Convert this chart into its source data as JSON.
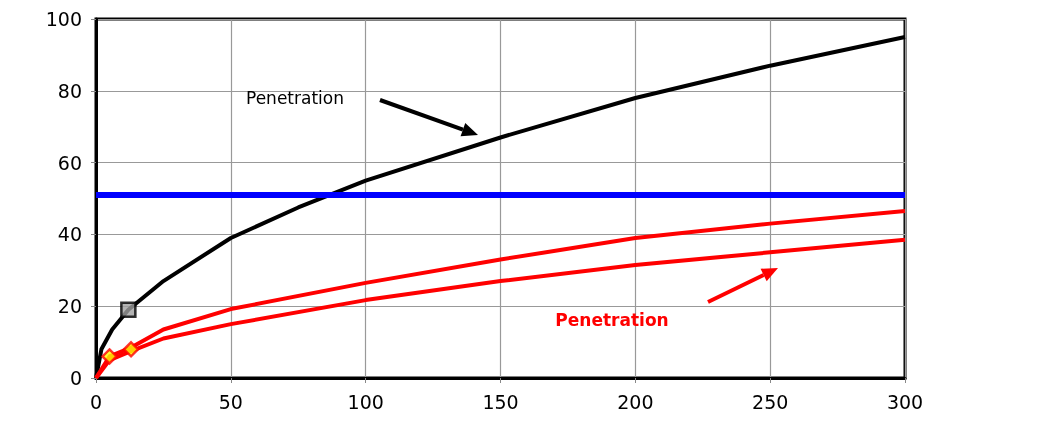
{
  "chart_data": {
    "type": "line",
    "xlim": [
      0,
      300
    ],
    "ylim": [
      0,
      100
    ],
    "xticks": [
      0,
      50,
      100,
      150,
      200,
      250,
      300
    ],
    "yticks": [
      0,
      20,
      40,
      60,
      80,
      100
    ],
    "grid": true,
    "line_style": "solid",
    "series": [
      {
        "color": "#000000",
        "marker": "none",
        "x": [
          0,
          2,
          6,
          12,
          25,
          50,
          75,
          100,
          150,
          200,
          250,
          300
        ],
        "values": [
          0,
          8,
          13.5,
          19,
          27,
          39,
          47.5,
          55,
          67,
          78,
          87,
          95
        ]
      },
      {
        "color": "#ff0000",
        "marker": "none",
        "x": [
          0,
          5,
          13,
          25,
          50,
          100,
          150,
          200,
          250,
          300
        ],
        "values": [
          0,
          6,
          8.5,
          13.5,
          19.2,
          26.5,
          33,
          39,
          43,
          46.5
        ]
      },
      {
        "color": "#ff0000",
        "marker": "none",
        "x": [
          0,
          5,
          13,
          25,
          50,
          100,
          150,
          200,
          250,
          300
        ],
        "values": [
          0,
          5,
          7.5,
          11,
          15,
          21.7,
          27,
          31.5,
          35,
          38.5
        ]
      },
      {
        "type": "scatter",
        "color": "#a0a0a0",
        "marker": "square",
        "x": [
          12
        ],
        "values": [
          19
        ]
      },
      {
        "type": "scatter",
        "color": "#ffff00",
        "marker": "diamond",
        "x": [
          5,
          13
        ],
        "values": [
          6,
          8
        ]
      }
    ],
    "ref_lines": [
      {
        "axis": "y",
        "value": 51,
        "color": "#0000ff"
      }
    ],
    "annotations": [
      "Penetration",
      "Penetration"
    ]
  }
}
